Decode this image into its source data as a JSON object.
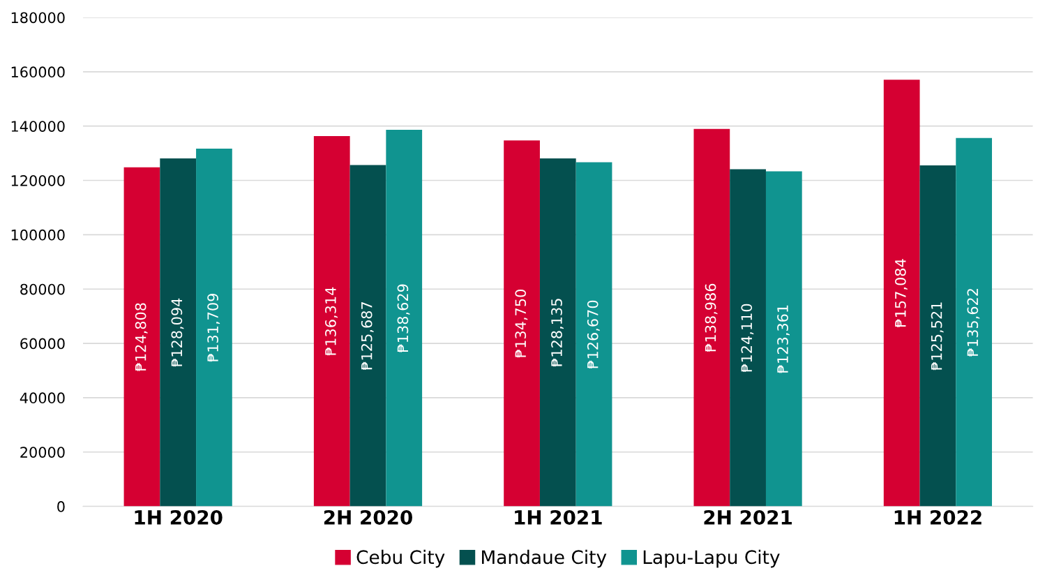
{
  "chart_data": {
    "type": "bar",
    "categories": [
      "1H 2020",
      "2H 2020",
      "1H 2021",
      "2H 2021",
      "1H 2022"
    ],
    "series": [
      {
        "name": "Cebu City",
        "color": "#d50032",
        "values": [
          124808,
          136314,
          134750,
          138986,
          157084
        ],
        "value_labels": [
          "₱124,808",
          "₱136,314",
          "₱134,750",
          "₱138,986",
          "₱157,084"
        ]
      },
      {
        "name": "Mandaue City",
        "color": "#04504f",
        "values": [
          128094,
          125687,
          128135,
          124110,
          125521
        ],
        "value_labels": [
          "₱128,094",
          "₱125,687",
          "₱128,135",
          "₱124,110",
          "₱125,521"
        ]
      },
      {
        "name": "Lapu-Lapu City",
        "color": "#109490",
        "values": [
          131709,
          138629,
          126670,
          123361,
          135622
        ],
        "value_labels": [
          "₱131,709",
          "₱138,629",
          "₱126,670",
          "₱123,361",
          "₱135,622"
        ]
      }
    ],
    "ylim": [
      0,
      180000
    ],
    "yticks": [
      0,
      20000,
      40000,
      60000,
      80000,
      100000,
      120000,
      140000,
      160000,
      180000
    ],
    "grid": "y",
    "legend": "bottom"
  }
}
